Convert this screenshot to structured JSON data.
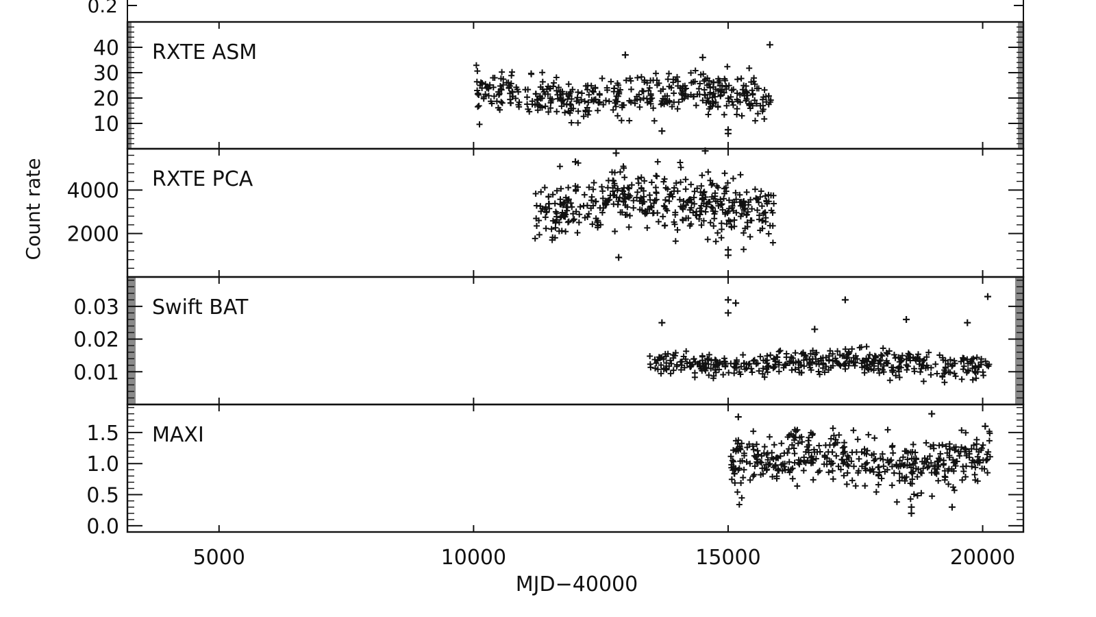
{
  "chart_data": {
    "type": "scatter",
    "xlabel": "MJD−40000",
    "ylabel": "Count rate",
    "xlim": [
      3200,
      20800
    ],
    "x_ticks": [
      5000,
      10000,
      15000,
      20000
    ],
    "x_tick_labels": [
      "5000",
      "10000",
      "15000",
      "20000"
    ],
    "top_panel_tick_label": "0.2",
    "marker": "plus",
    "grid": false,
    "colors": {
      "ink": "#111111",
      "shade": "#8a8a8a"
    },
    "panels": [
      {
        "name": "RXTE ASM",
        "ylim": [
          0,
          50
        ],
        "y_ticks": [
          10,
          20,
          30,
          40
        ],
        "y_tick_labels": [
          "10",
          "20",
          "30",
          "40"
        ],
        "x_range": [
          10050,
          15850
        ],
        "level": 21,
        "scatter": 5,
        "min": 6,
        "max": 41,
        "outliers": [
          [
            15820,
            41
          ],
          [
            12980,
            37
          ],
          [
            14500,
            36
          ],
          [
            15000,
            6
          ],
          [
            15000,
            7.5
          ],
          [
            13700,
            7
          ]
        ]
      },
      {
        "name": "RXTE PCA",
        "ylim": [
          0,
          5900
        ],
        "y_ticks": [
          2000,
          4000
        ],
        "y_tick_labels": [
          "2000",
          "4000"
        ],
        "x_range": [
          11200,
          15900
        ],
        "level": 3300,
        "scatter": 900,
        "min": 900,
        "max": 5900,
        "outliers": [
          [
            14550,
            5800
          ],
          [
            12800,
            5700
          ],
          [
            12000,
            5300
          ],
          [
            15000,
            1000
          ],
          [
            15000,
            1250
          ],
          [
            12850,
            900
          ]
        ]
      },
      {
        "name": "Swift BAT",
        "ylim": [
          0,
          0.039
        ],
        "y_ticks": [
          0.01,
          0.02,
          0.03
        ],
        "y_tick_labels": [
          "0.01",
          "0.02",
          "0.03"
        ],
        "x_range": [
          13450,
          20150
        ],
        "level": 0.0125,
        "scatter": 0.0025,
        "min": 0.006,
        "max": 0.034,
        "outliers": [
          [
            15000,
            0.032
          ],
          [
            15150,
            0.031
          ],
          [
            20100,
            0.033
          ],
          [
            17300,
            0.032
          ],
          [
            18500,
            0.026
          ],
          [
            13700,
            0.025
          ],
          [
            19700,
            0.025
          ],
          [
            16700,
            0.023
          ],
          [
            15000,
            0.028
          ]
        ]
      },
      {
        "name": "MAXI",
        "ylim": [
          -0.1,
          1.95
        ],
        "y_ticks": [
          0.0,
          0.5,
          1.0,
          1.5
        ],
        "y_tick_labels": [
          "0.0",
          "0.5",
          "1.0",
          "1.5"
        ],
        "x_range": [
          15050,
          20150
        ],
        "level": 1.05,
        "scatter": 0.27,
        "min": 0.2,
        "max": 1.8,
        "outliers": [
          [
            15200,
            1.75
          ],
          [
            18600,
            0.2
          ],
          [
            18600,
            0.3
          ],
          [
            19000,
            1.8
          ],
          [
            20050,
            1.6
          ],
          [
            19400,
            0.3
          ]
        ]
      }
    ]
  }
}
